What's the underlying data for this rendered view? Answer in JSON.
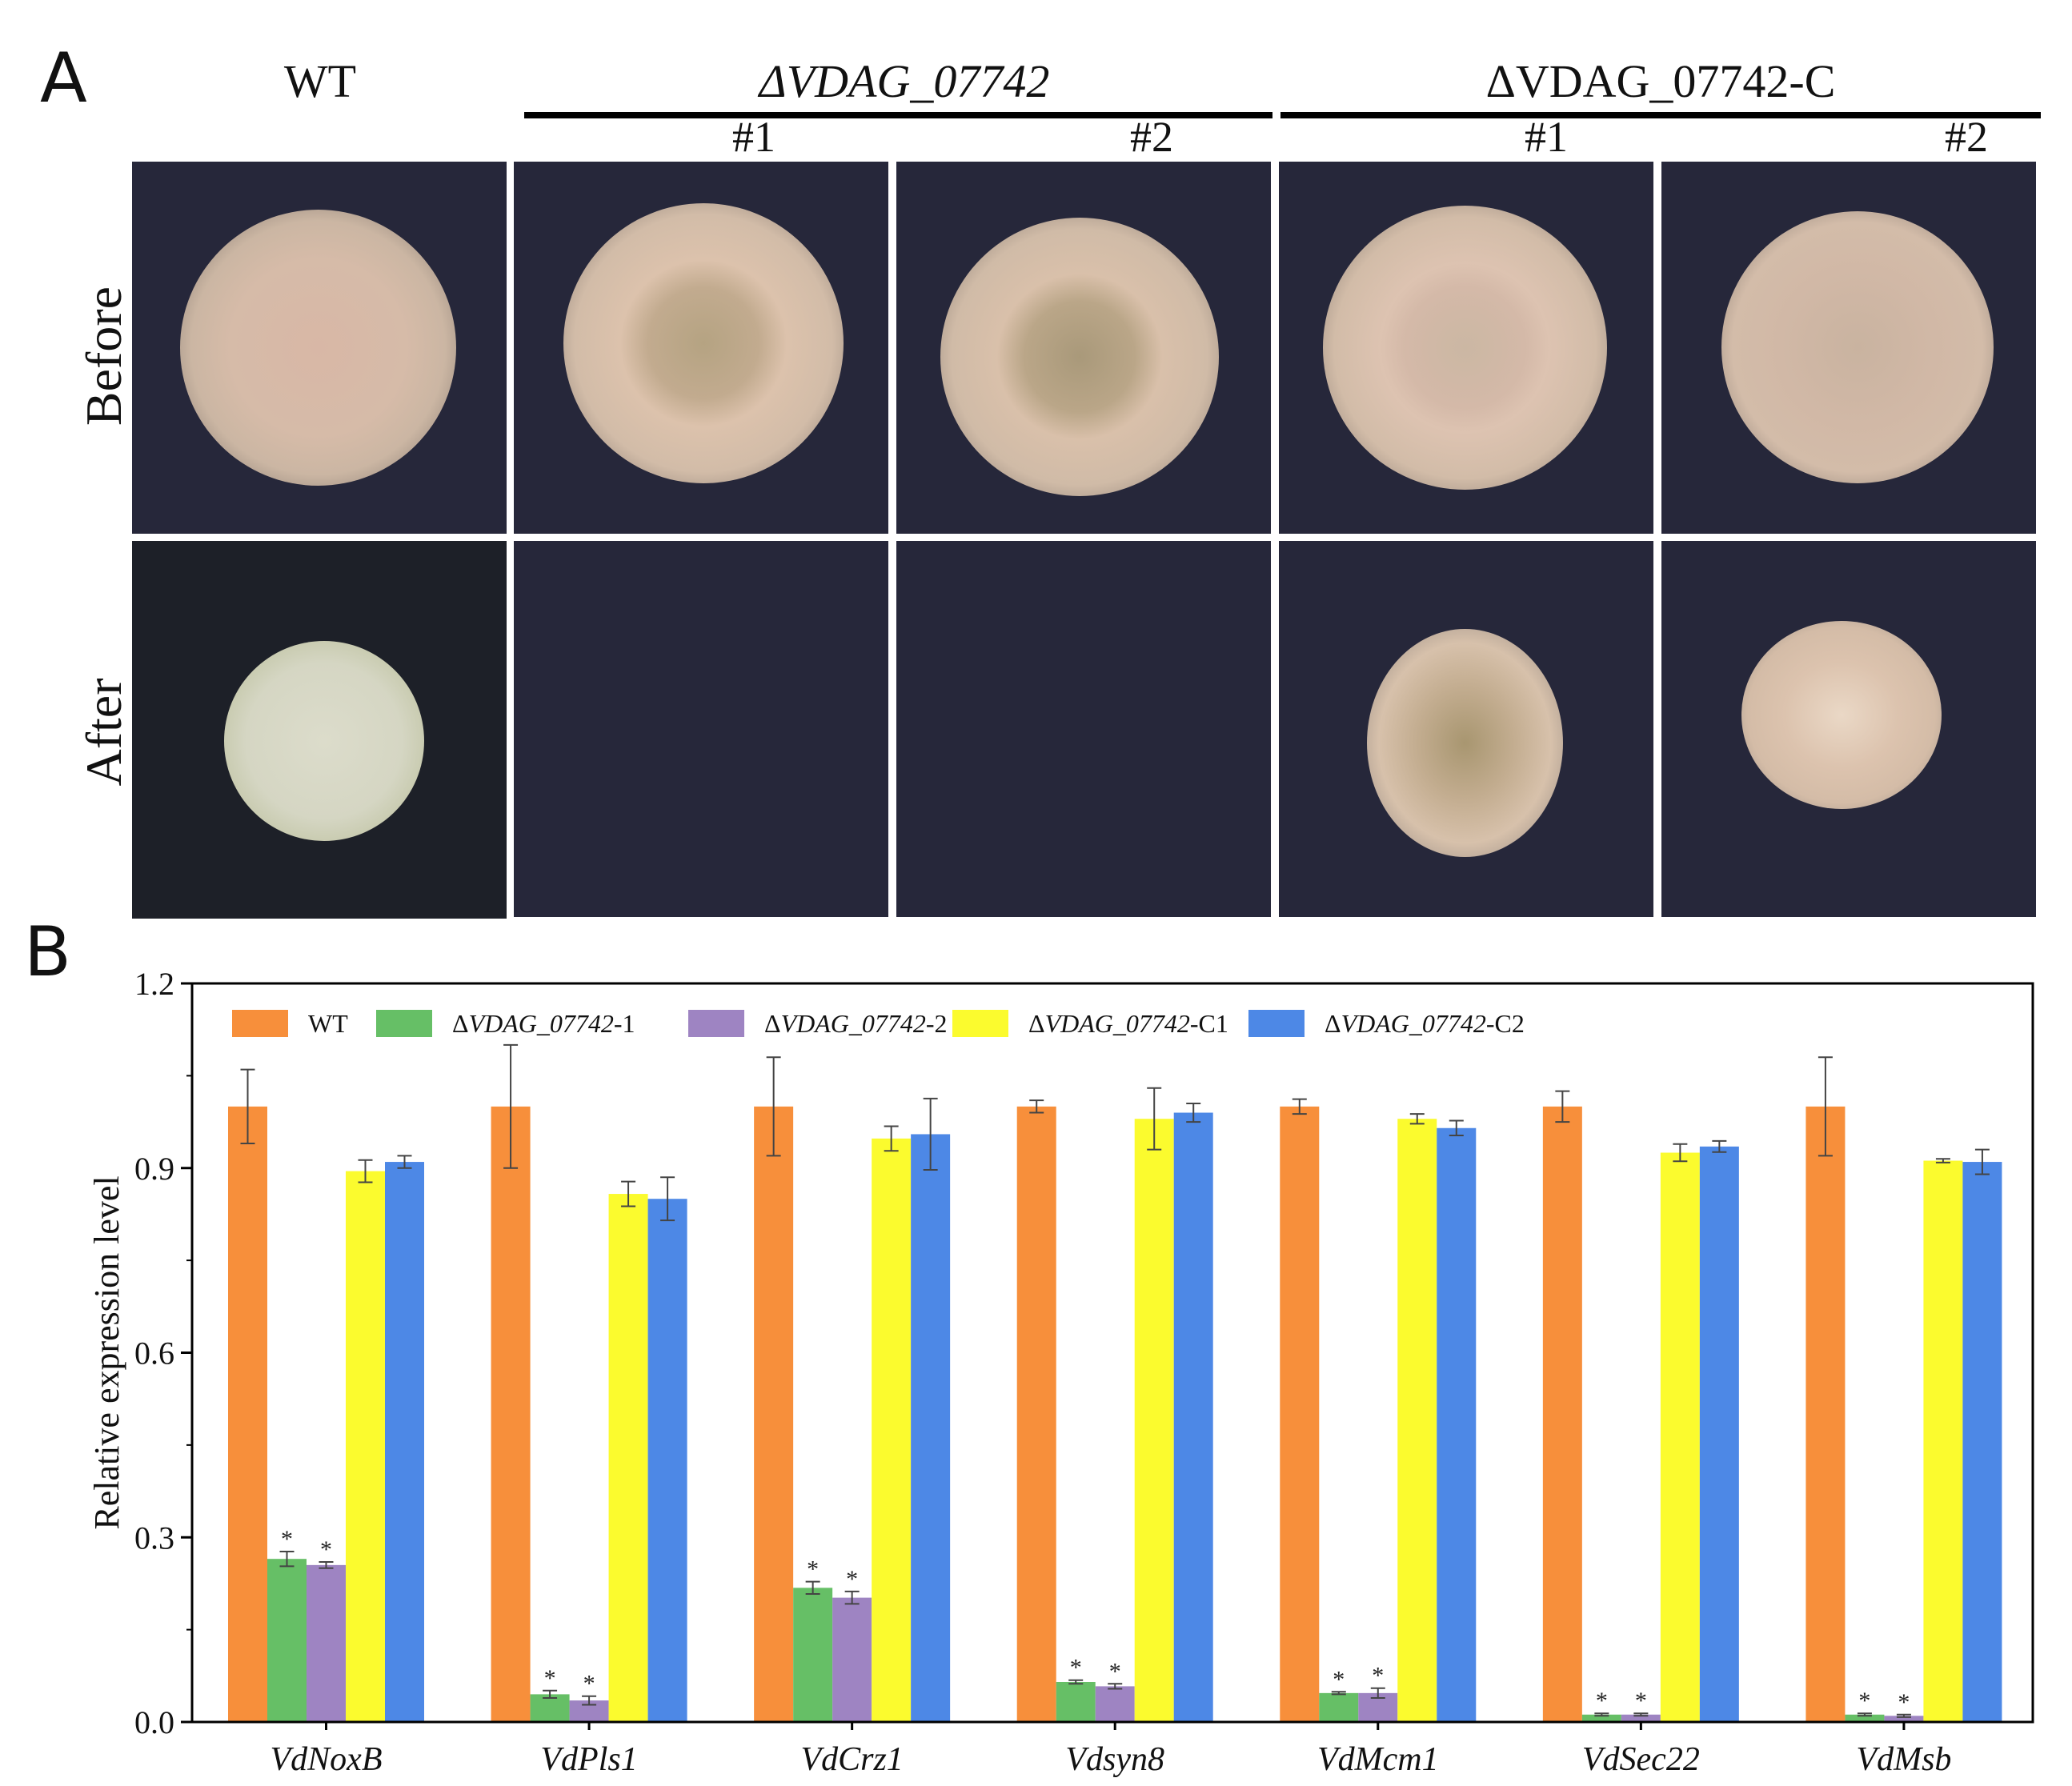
{
  "panel_a": {
    "letter": "A",
    "columns": {
      "wt": "WT",
      "mutant_group": "ΔVDAG_07742",
      "comp_group": "ΔVDAG_07742-C",
      "rep1": "#1",
      "rep2": "#2"
    },
    "rows": {
      "before": "Before",
      "after": "After"
    },
    "colony_color": "#cdb8a6",
    "background_color": "#26273a"
  },
  "panel_b": {
    "letter": "B"
  },
  "chart_data": {
    "type": "bar",
    "ylabel": "Relative expression level",
    "ylim": [
      0,
      1.2
    ],
    "yticks": [
      "0.0",
      "0.3",
      "0.6",
      "0.9",
      "1.2"
    ],
    "categories": [
      "VdNoxB",
      "VdPls1",
      "VdCrz1",
      "Vdsyn8",
      "VdMcm1",
      "VdSec22",
      "VdMsb"
    ],
    "legend_position": "top-left",
    "series": [
      {
        "name": "WT",
        "color": "#f78f3b",
        "values": [
          1.0,
          1.0,
          1.0,
          1.0,
          1.0,
          1.0,
          1.0
        ],
        "errors": [
          0.06,
          0.1,
          0.08,
          0.01,
          0.012,
          0.025,
          0.08
        ]
      },
      {
        "name": "ΔVDAG_07742-1",
        "color": "#66bf66",
        "values": [
          0.265,
          0.045,
          0.218,
          0.065,
          0.047,
          0.012,
          0.012
        ],
        "errors": [
          0.012,
          0.006,
          0.01,
          0.003,
          0.002,
          0.002,
          0.002
        ],
        "significance": [
          "*",
          "*",
          "*",
          "*",
          "*",
          "*",
          "*"
        ]
      },
      {
        "name": "ΔVDAG_07742-2",
        "color": "#9e84c2",
        "values": [
          0.255,
          0.035,
          0.202,
          0.058,
          0.047,
          0.012,
          0.01
        ],
        "errors": [
          0.005,
          0.007,
          0.01,
          0.004,
          0.008,
          0.002,
          0.002
        ],
        "significance": [
          "*",
          "*",
          "*",
          "*",
          "*",
          "*",
          "*"
        ]
      },
      {
        "name": "ΔVDAG_07742-C1",
        "color": "#fbfb2e",
        "values": [
          0.895,
          0.858,
          0.948,
          0.98,
          0.98,
          0.925,
          0.912
        ],
        "errors": [
          0.018,
          0.02,
          0.02,
          0.05,
          0.008,
          0.014,
          0.003
        ]
      },
      {
        "name": "ΔVDAG_07742-C2",
        "color": "#4d88e6",
        "values": [
          0.91,
          0.85,
          0.955,
          0.99,
          0.965,
          0.935,
          0.91
        ],
        "errors": [
          0.01,
          0.035,
          0.058,
          0.015,
          0.012,
          0.009,
          0.02
        ]
      }
    ]
  }
}
